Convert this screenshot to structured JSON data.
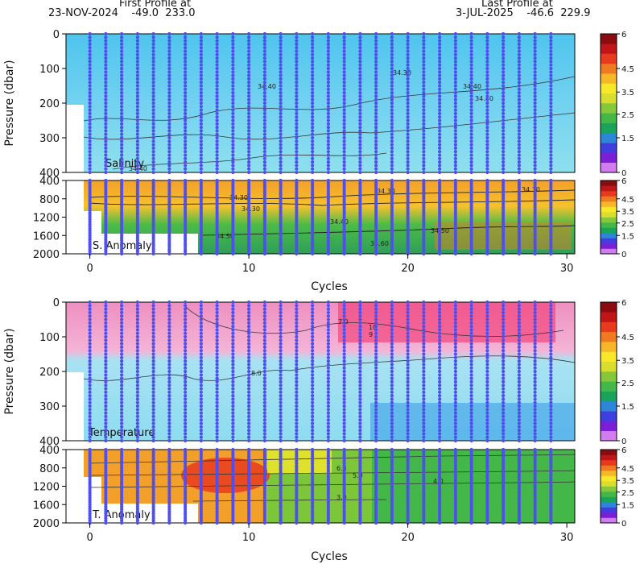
{
  "header": {
    "first_label": "First Profile at",
    "first_value": "23-NOV-2024    -49.0  233.0",
    "last_label": "Last Profile at",
    "last_value": "3-JUL-2025    -46.6  229.9"
  },
  "chart_data": [
    {
      "type": "heatmap",
      "title": "Salinity",
      "ylabel": "Pressure (dbar)",
      "ylim": [
        400,
        0
      ],
      "yticks": [
        0,
        100,
        200,
        300,
        400
      ],
      "xlim": [
        -1.5,
        30.5
      ],
      "contour_labels": [
        "34.40",
        "34.30",
        "34.40",
        "34.40",
        "34.40"
      ],
      "colorbar_ticks": [
        "6",
        "4.5",
        "3.5",
        "2.5",
        "1.5",
        "0"
      ]
    },
    {
      "type": "heatmap",
      "title": "S. Anomaly",
      "ylim": [
        2000,
        400
      ],
      "yticks": [
        400,
        800,
        1200,
        1600,
        2000
      ],
      "xlim": [
        -1.5,
        30.5
      ],
      "contour_labels": [
        "34.30",
        "34.30",
        "34.30",
        "34.30",
        "34.40",
        "34.50",
        "34.50",
        "34.60"
      ],
      "colorbar_ticks": [
        "6",
        "4.5",
        "3.5",
        "2.5",
        "1.5",
        "0"
      ]
    },
    {
      "type": "heatmap",
      "title": "Temperature",
      "ylabel": "Pressure (dbar)",
      "ylim": [
        400,
        0
      ],
      "yticks": [
        0,
        100,
        200,
        300,
        400
      ],
      "xlim": [
        -1.5,
        30.5
      ],
      "contour_labels": [
        "7.0",
        "10",
        "9",
        "8.0"
      ],
      "colorbar_ticks": [
        "6",
        "4.5",
        "3.5",
        "2.5",
        "1.5",
        "0"
      ]
    },
    {
      "type": "heatmap",
      "title": "T. Anomaly",
      "ylim": [
        2000,
        400
      ],
      "yticks": [
        400,
        800,
        1200,
        1600,
        2000
      ],
      "xlim": [
        -1.5,
        30.5
      ],
      "contour_labels": [
        "6.3",
        "5.0",
        "4.0",
        "3.0"
      ],
      "colorbar_ticks": [
        "6",
        "4.5",
        "3.5",
        "2.5",
        "1.5",
        "0"
      ]
    }
  ],
  "x_axis": {
    "label": "Cycles",
    "ticks": [
      0,
      10,
      20,
      30
    ]
  },
  "profiles": {
    "cycles": [
      0,
      1,
      2,
      3,
      4,
      5,
      6,
      7,
      8,
      9,
      10,
      11,
      12,
      13,
      14,
      15,
      16,
      17,
      18,
      19,
      20,
      21,
      22,
      23,
      24,
      25,
      26,
      27,
      28,
      29
    ]
  },
  "colors": {
    "colorbar": [
      "#d37cf0",
      "#7a1fd6",
      "#3f3fe0",
      "#2d86d8",
      "#1aa35a",
      "#43b848",
      "#86c83a",
      "#d8dd2e",
      "#f8e82a",
      "#f6b827",
      "#f07a22",
      "#e83b1e",
      "#c21518",
      "#8a0c10"
    ],
    "profile_dots": "#4f4ff0"
  }
}
